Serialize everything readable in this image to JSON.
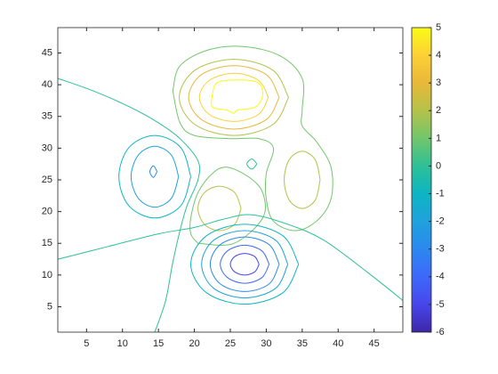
{
  "chart_data": {
    "type": "contour",
    "xlim": [
      1,
      49
    ],
    "ylim": [
      1,
      49
    ],
    "xticks": [
      5,
      10,
      15,
      20,
      25,
      30,
      35,
      40,
      45
    ],
    "yticks": [
      5,
      10,
      15,
      20,
      25,
      30,
      35,
      40,
      45
    ],
    "clim": [
      -6,
      5
    ],
    "cticks": [
      -6,
      -5,
      -4,
      -3,
      -2,
      -1,
      0,
      1,
      2,
      3,
      4,
      5
    ],
    "colormap": [
      "#3e26a8",
      "#4746eb",
      "#3e68fb",
      "#2b88ef",
      "#1fa2dd",
      "#0db5c3",
      "#2dc097",
      "#72c66b",
      "#b4c24a",
      "#e9b839",
      "#fcd036",
      "#f9fb15"
    ],
    "contours": [
      {
        "level": 5,
        "x": [
          22.5,
          23.5,
          28.5,
          29.5,
          28.5,
          26,
          25.5,
          24.5,
          22.5,
          22.5
        ],
        "y": [
          38.5,
          40.5,
          40.5,
          38.5,
          36.5,
          36,
          35.5,
          36,
          36.5,
          38.5
        ]
      },
      {
        "level": 4,
        "x": [
          30.3,
          28.9,
          25.5,
          22.1,
          20.7,
          22.1,
          25.5,
          28.9,
          30.3
        ],
        "y": [
          38,
          40.7,
          41.8,
          40.7,
          38,
          35.3,
          34.2,
          35.3,
          38
        ]
      },
      {
        "level": 3,
        "x": [
          31.8,
          30,
          25.5,
          21,
          19.2,
          21,
          25.5,
          30,
          31.8
        ],
        "y": [
          38,
          41.6,
          43,
          41.6,
          38,
          34.5,
          33,
          34.5,
          38
        ]
      },
      {
        "level": 2,
        "x": [
          33.1,
          30.9,
          25.5,
          20.1,
          17.9,
          20.1,
          25.5,
          30.9,
          33.1
        ],
        "y": [
          38,
          42.3,
          44,
          42.3,
          38,
          33.7,
          32,
          33.7,
          38
        ]
      },
      {
        "level": 1,
        "x": [
          17,
          18,
          22,
          27,
          32,
          35,
          35,
          35,
          37,
          39,
          39,
          37,
          34,
          31,
          30,
          30,
          31,
          29,
          25,
          20,
          18,
          17
        ],
        "y": [
          39,
          43,
          45.5,
          46,
          44.5,
          41,
          36,
          33.5,
          31,
          27,
          22,
          18.5,
          17,
          18.5,
          22,
          26,
          30,
          31.5,
          31.5,
          32,
          34,
          39
        ]
      },
      {
        "level": 2,
        "x": [
          37.5,
          36.8,
          35,
          33.2,
          32.5,
          33.2,
          35,
          36.8,
          37.5
        ],
        "y": [
          25,
          28.2,
          29.5,
          28.2,
          25,
          21.8,
          20.5,
          21.8,
          25
        ]
      },
      {
        "level": 2,
        "x": [
          26.5,
          25.6,
          23.5,
          21.4,
          20.5,
          21.4,
          23.5,
          25.6,
          26.5
        ],
        "y": [
          20.5,
          23,
          24,
          23,
          20.5,
          18,
          17,
          18,
          20.5
        ]
      },
      {
        "level": 1,
        "x": [
          20.5,
          25.5,
          29.5,
          29.5,
          27.5,
          24.5,
          22.5,
          20.5,
          19.5,
          19.5,
          20.5
        ],
        "y": [
          15,
          15,
          19,
          23,
          25.5,
          27,
          26,
          23,
          19,
          16.5,
          15
        ]
      },
      {
        "level": -1,
        "x": [
          19.5,
          18.1,
          14.5,
          10.9,
          9.5,
          10.9,
          14.5,
          18.1,
          19.5
        ],
        "y": [
          25.5,
          30.1,
          32,
          30.1,
          25.5,
          20.9,
          19,
          20.9,
          25.5
        ]
      },
      {
        "level": -2,
        "x": [
          17.8,
          16.8,
          14.5,
          12.2,
          11.2,
          12.2,
          14.5,
          16.8,
          17.8
        ],
        "y": [
          25.5,
          28.9,
          30.3,
          28.9,
          25.5,
          22.1,
          20.7,
          22.1,
          25.5
        ]
      },
      {
        "level": -3,
        "x": [
          14.8,
          14.3,
          13.8,
          14.3,
          14.8
        ],
        "y": [
          26.3,
          27.2,
          26.3,
          25.4,
          26.3
        ]
      },
      {
        "level": 0,
        "x": [
          28.7,
          28,
          27.3,
          28,
          28.7
        ],
        "y": [
          27.5,
          28.3,
          27.5,
          26.7,
          27.5
        ]
      },
      {
        "level": -5,
        "x": [
          29,
          28.4,
          27,
          25.6,
          25,
          25.6,
          27,
          28.4,
          29
        ],
        "y": [
          11.7,
          12.9,
          13.4,
          12.9,
          11.7,
          10.5,
          10,
          10.5,
          11.7
        ]
      },
      {
        "level": -4,
        "x": [
          30.4,
          29.4,
          27,
          24.6,
          23.6,
          24.6,
          27,
          29.4,
          30.4
        ],
        "y": [
          11.7,
          13.8,
          14.7,
          13.8,
          11.7,
          9.6,
          8.7,
          9.6,
          11.7
        ]
      },
      {
        "level": -3,
        "x": [
          31.8,
          30.4,
          27,
          23.6,
          22.2,
          23.6,
          27,
          30.4,
          31.8
        ],
        "y": [
          11.7,
          14.8,
          16,
          14.8,
          11.7,
          8.6,
          7.4,
          8.6,
          11.7
        ]
      },
      {
        "level": -2,
        "x": [
          33,
          31.3,
          27,
          22.7,
          21,
          22.7,
          27,
          31.3,
          33
        ],
        "y": [
          11.7,
          15.5,
          17,
          15.5,
          11.7,
          7.9,
          6.4,
          7.9,
          11.7
        ]
      },
      {
        "level": -1,
        "x": [
          34.5,
          32.3,
          27,
          21.7,
          19.5,
          21.7,
          27,
          32.3,
          34.5
        ],
        "y": [
          11.7,
          16.2,
          18,
          16.2,
          11.7,
          7.2,
          5.4,
          7.2,
          11.7
        ]
      },
      {
        "level": 0,
        "x": [
          1,
          8,
          15,
          20,
          24,
          28,
          33,
          38,
          44,
          49
        ],
        "y": [
          12.5,
          14.5,
          16.5,
          17.5,
          18.8,
          19.5,
          18,
          15.5,
          10.5,
          6
        ]
      },
      {
        "level": 0,
        "x": [
          1,
          6,
          11,
          15,
          18,
          20.5,
          20.5,
          19,
          18,
          17,
          16,
          14.5
        ],
        "y": [
          41,
          39,
          36.5,
          34,
          31.5,
          28,
          25,
          21,
          17,
          12,
          6,
          1
        ]
      }
    ]
  }
}
